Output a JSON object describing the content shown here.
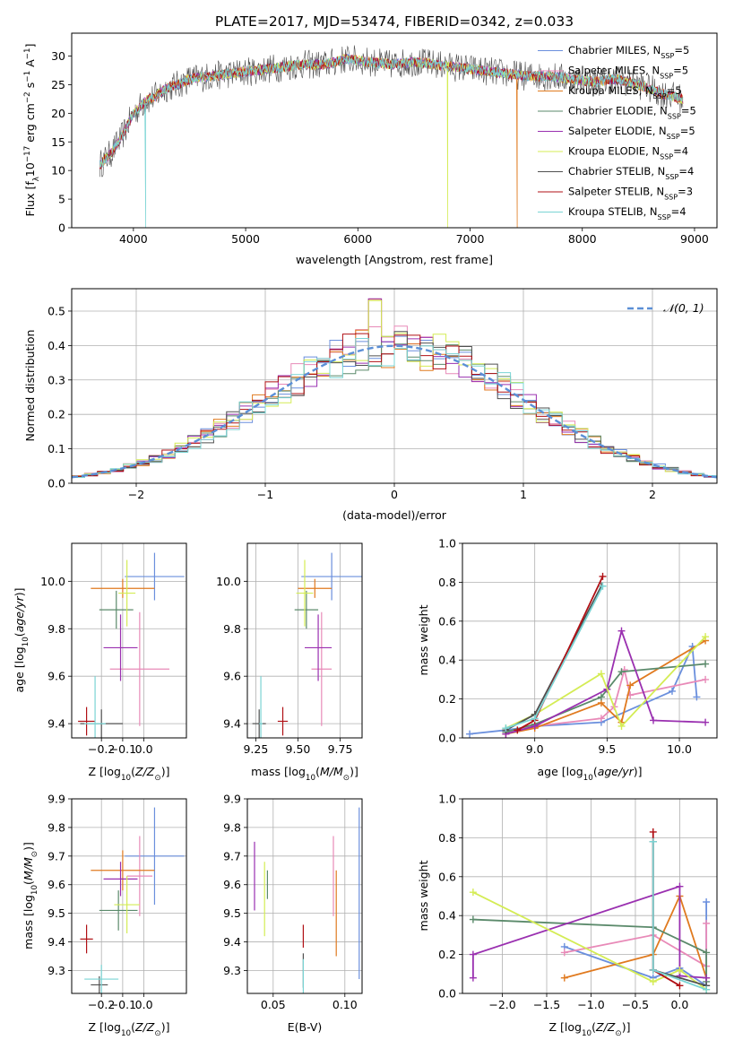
{
  "figure_title": "PLATE=2017, MJD=53474, FIBERID=0342, z=0.033",
  "model_names": [
    "Chabrier MILES",
    "Salpeter MILES",
    "Kroupa MILES",
    "Chabrier ELODIE",
    "Salpeter ELODIE",
    "Kroupa ELODIE",
    "Chabrier STELIB",
    "Salpeter STELIB",
    "Kroupa STELIB"
  ],
  "model_nssp": [
    "=5",
    "=5",
    "=5",
    "=5",
    "=5",
    "=4",
    "=4",
    "=3",
    "=4"
  ],
  "model_colors": [
    "#6a8fdd",
    "#e88ab8",
    "#e07a1f",
    "#5b8a6b",
    "#9a30b0",
    "#d4ec54",
    "#505050",
    "#b01015",
    "#7ad4d4"
  ],
  "chart_data": [
    {
      "id": "spectrum",
      "type": "line",
      "xlabel": "wavelength [Angstrom, rest frame]",
      "ylabel": "Flux [f",
      "xlim": [
        3450,
        9200
      ],
      "ylim": [
        0,
        34
      ],
      "xticks": [
        4000,
        5000,
        6000,
        7000,
        8000,
        9000
      ],
      "yticks": [
        0,
        5,
        10,
        15,
        20,
        25,
        30
      ],
      "legend_position": "upper-right",
      "nssp_label": "N",
      "nssp_sub": "SSP",
      "anchors": {
        "x": [
          3700,
          3800,
          3900,
          4000,
          4100,
          4200,
          4300,
          4400,
          4500,
          4700,
          4900,
          5100,
          5300,
          5500,
          5700,
          5900,
          6100,
          6300,
          6500,
          6700,
          6900,
          7100,
          7300,
          7500,
          7700,
          7900,
          8100,
          8300,
          8500,
          8700,
          8900
        ],
        "y": [
          11,
          13,
          16,
          20,
          22,
          23,
          24.5,
          25,
          26,
          26.5,
          27,
          27.5,
          28,
          28.5,
          28.5,
          29.5,
          29,
          28.5,
          29,
          28.5,
          28,
          27.5,
          27,
          26.5,
          26.5,
          26,
          25.5,
          26,
          25,
          23.5,
          22.5
        ]
      }
    },
    {
      "id": "residuals",
      "type": "histogram",
      "xlabel": "(data-model)/error",
      "ylabel": "Normed distribution",
      "xlim": [
        -2.5,
        2.5
      ],
      "ylim": [
        0,
        0.565
      ],
      "xticks": [
        -2,
        -1,
        0,
        1,
        2
      ],
      "yticks": [
        0.0,
        0.1,
        0.2,
        0.3,
        0.4,
        0.5
      ],
      "legend": "𝒩(0, 1)",
      "normal_curve": {
        "mean": 0,
        "sigma": 1
      }
    },
    {
      "id": "age_vs_z",
      "type": "errorbar",
      "xlabel": "Z [log",
      "xlabel_sub": "10",
      "xlabel_rest": "(Z/Z",
      "ylabel": "age  [log",
      "xlim": [
        -0.34,
        0.2
      ],
      "ylim": [
        9.34,
        10.16
      ],
      "xticks": [
        -0.2,
        -0.1,
        0.0
      ],
      "yticks": [
        9.4,
        9.6,
        9.8,
        10.0
      ],
      "points": [
        {
          "x": 0.05,
          "xerr": 0.14,
          "y": 10.02,
          "yerr": 0.1
        },
        {
          "x": -0.02,
          "xerr": 0.14,
          "y": 9.63,
          "yerr": 0.24
        },
        {
          "x": -0.1,
          "xerr": 0.15,
          "y": 9.97,
          "yerr": 0.04
        },
        {
          "x": -0.13,
          "xerr": 0.08,
          "y": 9.88,
          "yerr": 0.08
        },
        {
          "x": -0.11,
          "xerr": 0.08,
          "y": 9.72,
          "yerr": 0.14
        },
        {
          "x": -0.08,
          "xerr": 0.04,
          "y": 9.95,
          "yerr": 0.14
        },
        {
          "x": -0.2,
          "xerr": 0.1,
          "y": 9.4,
          "yerr": 0.06
        },
        {
          "x": -0.27,
          "xerr": 0.04,
          "y": 9.41,
          "yerr": 0.06
        },
        {
          "x": -0.23,
          "xerr": 0.05,
          "y": 9.4,
          "yerr": 0.2
        }
      ]
    },
    {
      "id": "age_vs_mass",
      "type": "errorbar",
      "xlabel": "mass [log",
      "ylabel": "",
      "xlim": [
        9.2,
        9.88
      ],
      "ylim": [
        9.34,
        10.16
      ],
      "xticks": [
        9.25,
        9.5,
        9.75
      ],
      "yticks": [
        9.4,
        9.6,
        9.8,
        10.0
      ],
      "points": [
        {
          "x": 9.7,
          "xerr": 0.18,
          "y": 10.02,
          "yerr": 0.1
        },
        {
          "x": 9.64,
          "xerr": 0.06,
          "y": 9.63,
          "yerr": 0.24
        },
        {
          "x": 9.6,
          "xerr": 0.1,
          "y": 9.97,
          "yerr": 0.04
        },
        {
          "x": 9.55,
          "xerr": 0.07,
          "y": 9.88,
          "yerr": 0.08
        },
        {
          "x": 9.62,
          "xerr": 0.08,
          "y": 9.72,
          "yerr": 0.14
        },
        {
          "x": 9.54,
          "xerr": 0.05,
          "y": 9.95,
          "yerr": 0.14
        },
        {
          "x": 9.27,
          "xerr": 0.04,
          "y": 9.4,
          "yerr": 0.06
        },
        {
          "x": 9.41,
          "xerr": 0.03,
          "y": 9.41,
          "yerr": 0.06
        },
        {
          "x": 9.28,
          "xerr": 0.01,
          "y": 9.4,
          "yerr": 0.2
        }
      ]
    },
    {
      "id": "weight_vs_age",
      "type": "line",
      "xlabel": "age  [log",
      "ylabel": "mass weight",
      "xlim": [
        8.5,
        10.26
      ],
      "ylim": [
        0,
        1.0
      ],
      "xticks": [
        9.0,
        9.5,
        10.0
      ],
      "yticks": [
        0.0,
        0.2,
        0.4,
        0.6,
        0.8,
        1.0
      ],
      "series": [
        {
          "x": [
            8.55,
            8.8,
            9.0,
            9.46,
            9.95,
            10.09,
            10.12
          ],
          "y": [
            0.02,
            0.04,
            0.06,
            0.08,
            0.24,
            0.47,
            0.21
          ]
        },
        {
          "x": [
            8.8,
            9.0,
            9.46,
            9.55,
            9.62,
            9.66,
            10.18
          ],
          "y": [
            0.03,
            0.06,
            0.1,
            0.16,
            0.35,
            0.22,
            0.3
          ]
        },
        {
          "x": [
            8.8,
            9.0,
            9.46,
            9.6,
            9.66,
            10.18
          ],
          "y": [
            0.02,
            0.05,
            0.18,
            0.08,
            0.27,
            0.5
          ]
        },
        {
          "x": [
            8.8,
            9.0,
            9.46,
            9.6,
            10.18
          ],
          "y": [
            0.03,
            0.07,
            0.21,
            0.34,
            0.38
          ]
        },
        {
          "x": [
            8.8,
            9.0,
            9.5,
            9.6,
            9.82,
            10.18
          ],
          "y": [
            0.02,
            0.06,
            0.25,
            0.55,
            0.09,
            0.08
          ]
        },
        {
          "x": [
            8.8,
            9.0,
            9.46,
            9.6,
            10.18
          ],
          "y": [
            0.05,
            0.12,
            0.33,
            0.06,
            0.52
          ]
        },
        {
          "x": [
            8.8,
            9.0,
            9.46
          ],
          "y": [
            0.04,
            0.12,
            0.78
          ]
        },
        {
          "x": [
            8.88,
            9.0,
            9.47
          ],
          "y": [
            0.04,
            0.09,
            0.83
          ]
        },
        {
          "x": [
            8.8,
            9.0,
            9.47
          ],
          "y": [
            0.05,
            0.1,
            0.78
          ]
        }
      ]
    },
    {
      "id": "mass_vs_z",
      "type": "errorbar",
      "xlabel": "Z [log",
      "ylabel": "mass [log",
      "xlim": [
        -0.34,
        0.2
      ],
      "ylim": [
        9.22,
        9.9
      ],
      "xticks": [
        -0.2,
        -0.1,
        0.0
      ],
      "yticks": [
        9.3,
        9.4,
        9.5,
        9.6,
        9.7,
        9.8,
        9.9
      ],
      "points": [
        {
          "x": 0.05,
          "xerr": 0.14,
          "y": 9.7,
          "yerr": 0.17
        },
        {
          "x": -0.02,
          "xerr": 0.06,
          "y": 9.63,
          "yerr": 0.14
        },
        {
          "x": -0.1,
          "xerr": 0.15,
          "y": 9.65,
          "yerr": 0.07
        },
        {
          "x": -0.12,
          "xerr": 0.09,
          "y": 9.51,
          "yerr": 0.07
        },
        {
          "x": -0.11,
          "xerr": 0.08,
          "y": 9.62,
          "yerr": 0.06
        },
        {
          "x": -0.08,
          "xerr": 0.06,
          "y": 9.53,
          "yerr": 0.1
        },
        {
          "x": -0.21,
          "xerr": 0.04,
          "y": 9.25,
          "yerr": 0.03
        },
        {
          "x": -0.27,
          "xerr": 0.03,
          "y": 9.41,
          "yerr": 0.05
        },
        {
          "x": -0.2,
          "xerr": 0.08,
          "y": 9.27,
          "yerr": 0.05
        }
      ]
    },
    {
      "id": "mass_vs_ebv",
      "type": "errorbar",
      "xlabel": "E(B-V)",
      "ylabel": "",
      "xlim": [
        0.032,
        0.112
      ],
      "ylim": [
        9.22,
        9.9
      ],
      "xticks": [
        0.05,
        0.1
      ],
      "yticks": [
        9.3,
        9.4,
        9.5,
        9.6,
        9.7,
        9.8,
        9.9
      ],
      "points": [
        {
          "x": 0.11,
          "xerr": 0,
          "y": 9.57,
          "yerr": 0.3
        },
        {
          "x": 0.092,
          "xerr": 0,
          "y": 9.63,
          "yerr": 0.14
        },
        {
          "x": 0.094,
          "xerr": 0,
          "y": 9.5,
          "yerr": 0.15
        },
        {
          "x": 0.046,
          "xerr": 0,
          "y": 9.6,
          "yerr": 0.05
        },
        {
          "x": 0.037,
          "xerr": 0,
          "y": 9.63,
          "yerr": 0.12
        },
        {
          "x": 0.044,
          "xerr": 0,
          "y": 9.55,
          "yerr": 0.13
        },
        {
          "x": 0.071,
          "xerr": 0,
          "y": 9.3,
          "yerr": 0.06
        },
        {
          "x": 0.071,
          "xerr": 0,
          "y": 9.42,
          "yerr": 0.04
        },
        {
          "x": 0.071,
          "xerr": 0,
          "y": 9.28,
          "yerr": 0.06
        }
      ]
    },
    {
      "id": "weight_vs_z",
      "type": "line",
      "xlabel": "Z [log",
      "ylabel": "mass weight",
      "xlim": [
        -2.45,
        0.42
      ],
      "ylim": [
        0,
        1.0
      ],
      "xticks": [
        -2.0,
        -1.5,
        -1.0,
        -0.5,
        0.0
      ],
      "yticks": [
        0.0,
        0.2,
        0.4,
        0.6,
        0.8,
        1.0
      ],
      "series": [
        {
          "x": [
            -1.3,
            -0.3,
            0,
            0.3,
            0.3
          ],
          "y": [
            0.24,
            0.08,
            0.13,
            0.04,
            0.47
          ]
        },
        {
          "x": [
            -1.3,
            -0.3,
            0.3,
            0.3
          ],
          "y": [
            0.21,
            0.3,
            0.14,
            0.36
          ]
        },
        {
          "x": [
            -1.3,
            -0.3,
            0,
            0.3
          ],
          "y": [
            0.08,
            0.2,
            0.5,
            0.08
          ]
        },
        {
          "x": [
            -2.33,
            -0.3,
            0.3,
            0.3
          ],
          "y": [
            0.38,
            0.34,
            0.21,
            0.06
          ]
        },
        {
          "x": [
            -2.33,
            -2.33,
            0,
            0,
            0.3
          ],
          "y": [
            0.08,
            0.2,
            0.55,
            0.09,
            0.08
          ]
        },
        {
          "x": [
            -2.33,
            -0.3,
            0,
            0.3
          ],
          "y": [
            0.52,
            0.06,
            0.12,
            0.02
          ]
        },
        {
          "x": [
            -0.3,
            -0.3,
            0.3
          ],
          "y": [
            0.78,
            0.12,
            0.04
          ]
        },
        {
          "x": [
            -0.3,
            -0.3,
            0.0
          ],
          "y": [
            0.83,
            0.12,
            0.04
          ]
        },
        {
          "x": [
            -0.3,
            -0.3,
            0.3
          ],
          "y": [
            0.78,
            0.12,
            0.02
          ]
        }
      ]
    }
  ]
}
